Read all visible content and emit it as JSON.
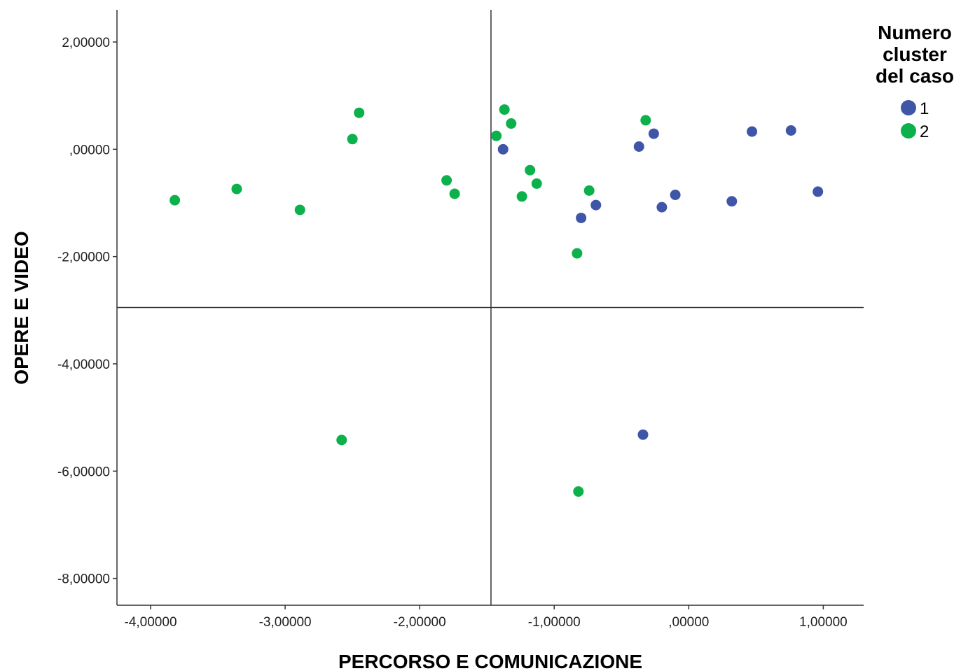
{
  "chart_data": {
    "type": "scatter",
    "xlabel": "PERCORSO E COMUNICAZIONE",
    "ylabel": "OPERE E VIDEO",
    "xlim": [
      -4.25,
      1.3
    ],
    "ylim": [
      -8.5,
      2.6
    ],
    "x_ticks": [
      -4,
      -3,
      -2,
      -1,
      0,
      1
    ],
    "y_ticks": [
      2,
      0,
      -2,
      -4,
      -6,
      -8
    ],
    "x_tick_labels": [
      "-4,00000",
      "-3,00000",
      "-2,00000",
      "-1,00000",
      ",00000",
      "1,00000"
    ],
    "y_tick_labels": [
      "2,00000",
      ",00000",
      "-2,00000",
      "-4,00000",
      "-6,00000",
      "-8,00000"
    ],
    "reference_lines": {
      "x": -1.47,
      "y": -2.95
    },
    "legend": {
      "title_lines": [
        "Numero",
        "cluster",
        "del caso"
      ],
      "placement": "right"
    },
    "series": [
      {
        "name": "1",
        "color": "#3f56a8",
        "points": [
          [
            -1.38,
            0.0
          ],
          [
            -0.37,
            0.05
          ],
          [
            -0.26,
            0.29
          ],
          [
            0.47,
            0.33
          ],
          [
            0.76,
            0.35
          ],
          [
            -0.1,
            -0.85
          ],
          [
            -0.2,
            -1.08
          ],
          [
            -0.69,
            -1.04
          ],
          [
            -0.8,
            -1.28
          ],
          [
            0.32,
            -0.97
          ],
          [
            0.96,
            -0.79
          ],
          [
            -0.34,
            -5.32
          ]
        ]
      },
      {
        "name": "2",
        "color": "#0cb14b",
        "points": [
          [
            -3.82,
            -0.95
          ],
          [
            -3.36,
            -0.74
          ],
          [
            -2.89,
            -1.13
          ],
          [
            -2.5,
            0.19
          ],
          [
            -2.45,
            0.68
          ],
          [
            -1.8,
            -0.58
          ],
          [
            -1.74,
            -0.83
          ],
          [
            -1.43,
            0.25
          ],
          [
            -1.37,
            0.74
          ],
          [
            -1.32,
            0.48
          ],
          [
            -1.24,
            -0.88
          ],
          [
            -1.18,
            -0.39
          ],
          [
            -1.13,
            -0.64
          ],
          [
            -0.74,
            -0.77
          ],
          [
            -0.83,
            -1.94
          ],
          [
            -0.32,
            0.54
          ],
          [
            -2.58,
            -5.42
          ],
          [
            -0.82,
            -6.38
          ]
        ]
      }
    ]
  }
}
